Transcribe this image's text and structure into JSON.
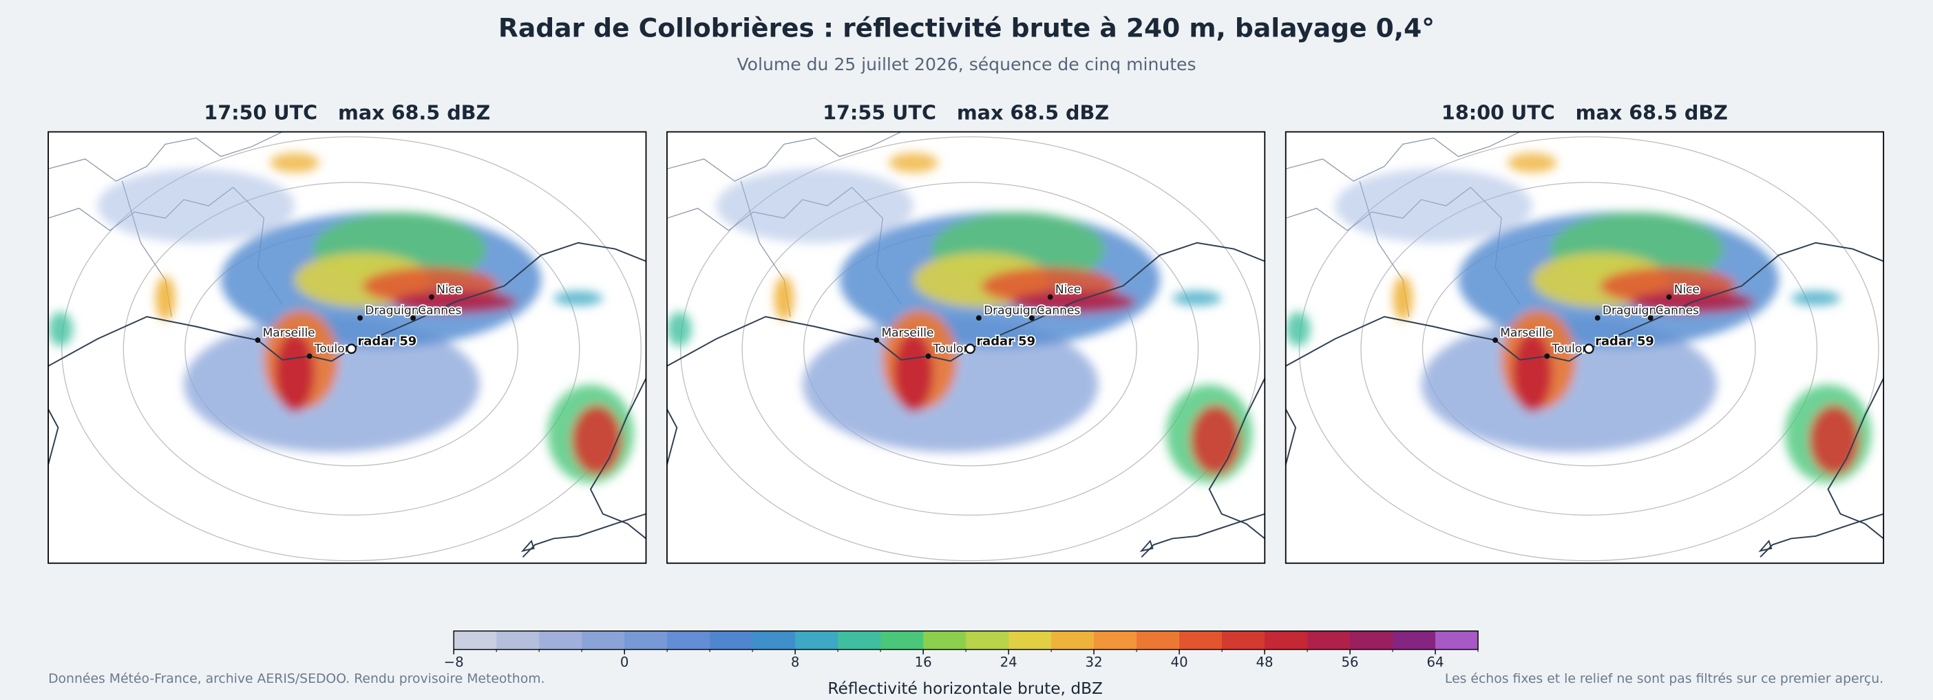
{
  "header": {
    "title": "Radar de Collobrières : réflectivité brute à 240 m, balayage 0,4°",
    "subtitle": "Volume du 25 juillet 2026, séquence de cinq minutes"
  },
  "panels": [
    "17:50 UTC   max 68.5 dBZ",
    "17:55 UTC   max 68.5 dBZ",
    "18:00 UTC   max 68.5 dBZ"
  ],
  "map": {
    "cities": [
      "Marseille",
      "Toulon",
      "Draguignan",
      "Cannes",
      "Nice"
    ],
    "radar_label": "radar 59"
  },
  "colorbar": {
    "label": "Réflectivité horizontale brute, dBZ",
    "bounds": [
      -8,
      -6,
      -4,
      -2,
      0,
      2,
      4,
      6,
      8,
      10,
      13,
      16,
      20,
      24,
      28,
      32,
      36,
      40,
      44,
      48,
      52,
      56,
      60,
      64,
      68
    ],
    "colors": [
      "#c9cfe0",
      "#b5bfdd",
      "#a1b0db",
      "#8ba4d8",
      "#7799d6",
      "#638dd4",
      "#4f86cf",
      "#3e8fca",
      "#3da9c4",
      "#3fbf9f",
      "#4ac77a",
      "#8ccf4c",
      "#b8d24a",
      "#e1cf44",
      "#efb23a",
      "#f0953a",
      "#ec7834",
      "#e2552f",
      "#d33a2f",
      "#c42835",
      "#b0214a",
      "#9a1f5e",
      "#862482",
      "#a75ac4"
    ],
    "ticks": [
      {
        "value": -8,
        "label": "−8"
      },
      0,
      8,
      16,
      24,
      32,
      40,
      48,
      56,
      64
    ]
  },
  "footer": {
    "left": "Données Météo-France, archive AERIS/SEDOO. Rendu provisoire Meteothom.",
    "right": "Les échos fixes et le relief ne sont pas filtrés sur ce premier aperçu."
  }
}
